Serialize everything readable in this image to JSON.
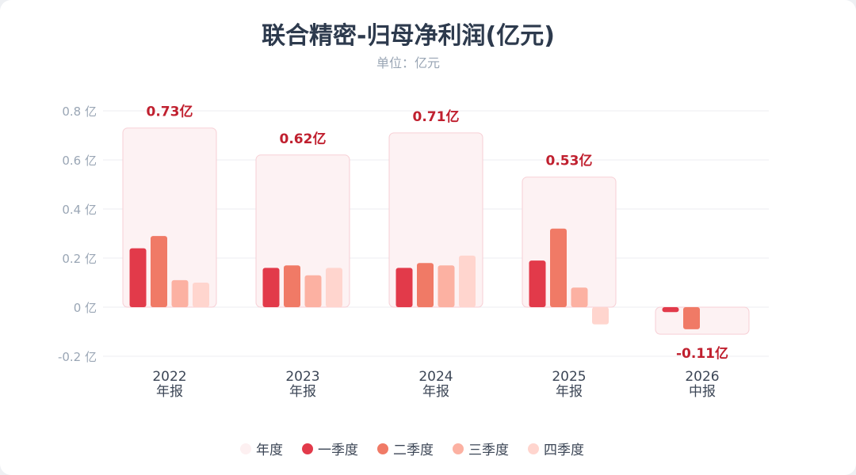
{
  "title": "联合精密-归母净利润(亿元)",
  "subtitle": "单位：亿元",
  "colors": {
    "annual_fill": "#fdf2f3",
    "annual_stroke": "#f7cfd5",
    "annual_label": "#c0202f",
    "axis_text": "#9aa6b5",
    "grid": "#eceef1",
    "category_text": "#3c4656",
    "series": [
      "#e23a4a",
      "#f07a66",
      "#fcb1a2",
      "#ffd5ce"
    ]
  },
  "legend": [
    {
      "name": "年度",
      "color": "#fdf0f1"
    },
    {
      "name": "一季度",
      "color": "#e23a4a"
    },
    {
      "name": "二季度",
      "color": "#f07a66"
    },
    {
      "name": "三季度",
      "color": "#fcb1a2"
    },
    {
      "name": "四季度",
      "color": "#ffd5ce"
    }
  ],
  "chart_data": {
    "type": "bar",
    "title": "联合精密-归母净利润(亿元)",
    "subtitle": "单位：亿元",
    "categories": [
      {
        "year": "2022",
        "period": "年报"
      },
      {
        "year": "2023",
        "period": "年报"
      },
      {
        "year": "2024",
        "period": "年报"
      },
      {
        "year": "2025",
        "period": "年报"
      },
      {
        "year": "2026",
        "period": "中报"
      }
    ],
    "annual": {
      "name": "年度",
      "values": [
        0.73,
        0.62,
        0.71,
        0.53,
        -0.11
      ],
      "labels": [
        "0.73亿",
        "0.62亿",
        "0.71亿",
        "0.53亿",
        "-0.11亿"
      ]
    },
    "series": [
      {
        "name": "一季度",
        "values": [
          0.24,
          0.16,
          0.16,
          0.19,
          -0.02
        ]
      },
      {
        "name": "二季度",
        "values": [
          0.29,
          0.17,
          0.18,
          0.32,
          -0.09
        ]
      },
      {
        "name": "三季度",
        "values": [
          0.11,
          0.13,
          0.17,
          0.08,
          null
        ]
      },
      {
        "name": "四季度",
        "values": [
          0.1,
          0.16,
          0.21,
          -0.07,
          null
        ]
      }
    ],
    "y_ticks": [
      {
        "value": 0.8,
        "label": "0.8 亿"
      },
      {
        "value": 0.6,
        "label": "0.6 亿"
      },
      {
        "value": 0.4,
        "label": "0.4 亿"
      },
      {
        "value": 0.2,
        "label": "0.2 亿"
      },
      {
        "value": 0,
        "label": "0 亿"
      },
      {
        "value": -0.2,
        "label": "-0.2 亿"
      }
    ],
    "ylim": [
      -0.2,
      0.8
    ],
    "grid": true,
    "legend_position": "bottom"
  }
}
